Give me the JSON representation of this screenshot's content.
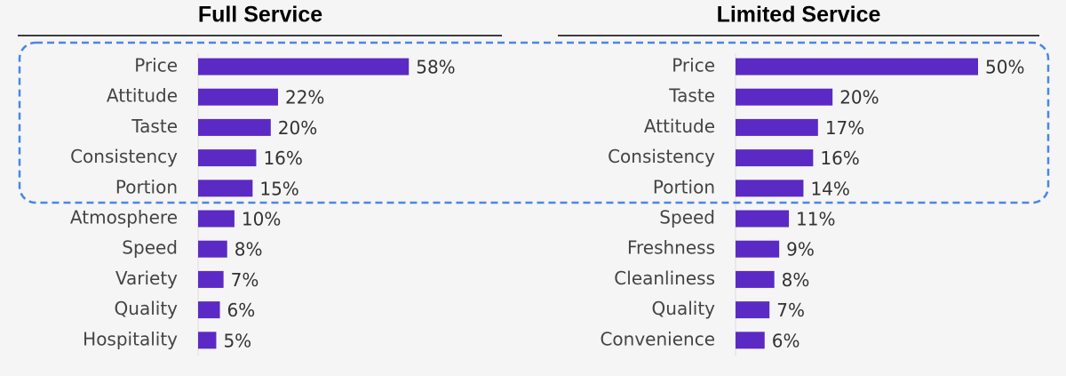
{
  "chart_data": [
    {
      "type": "bar",
      "title": "Full Service",
      "categories": [
        "Price",
        "Attitude",
        "Taste",
        "Consistency",
        "Portion",
        "Atmosphere",
        "Speed",
        "Variety",
        "Quality",
        "Hospitality"
      ],
      "values": [
        58,
        22,
        20,
        16,
        15,
        10,
        8,
        7,
        6,
        5
      ],
      "value_labels": [
        "58%",
        "22%",
        "20%",
        "16%",
        "15%",
        "10%",
        "8%",
        "7%",
        "6%",
        "5%"
      ],
      "color": "#5b2ac4"
    },
    {
      "type": "bar",
      "title": "Limited Service",
      "categories": [
        "Price",
        "Taste",
        "Attitude",
        "Consistency",
        "Portion",
        "Speed",
        "Freshness",
        "Cleanliness",
        "Quality",
        "Convenience"
      ],
      "values": [
        50,
        20,
        17,
        16,
        14,
        11,
        9,
        8,
        7,
        6
      ],
      "value_labels": [
        "50%",
        "20%",
        "17%",
        "16%",
        "14%",
        "11%",
        "9%",
        "8%",
        "7%",
        "6%"
      ],
      "color": "#5b2ac4"
    }
  ]
}
